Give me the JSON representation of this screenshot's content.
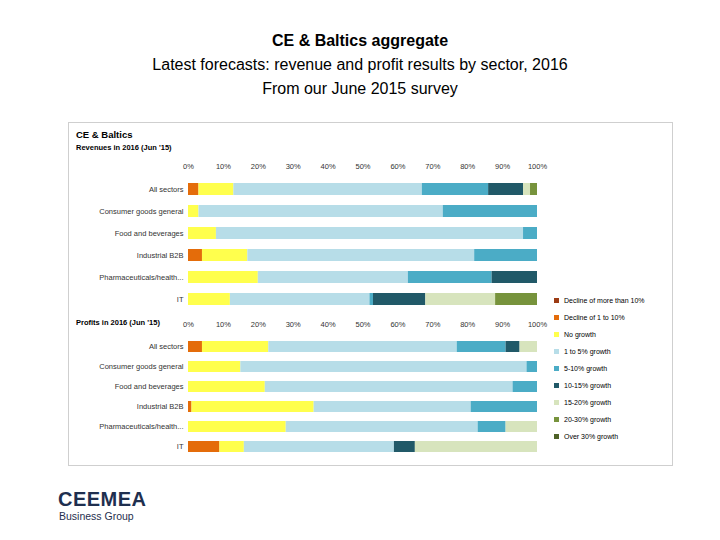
{
  "header": {
    "title": "CE & Baltics aggregate",
    "subtitle": [
      "Latest forecasts: revenue and profit results by sector, 2016",
      "From our June 2015 survey"
    ]
  },
  "panel": {
    "title": "CE & Baltics"
  },
  "chart_data": [
    {
      "type": "bar",
      "title": "Revenues in 2016 (Jun '15)",
      "orientation": "horizontal",
      "stacked": true,
      "legend": "right",
      "categories": [
        "All sectors",
        "Consumer goods general",
        "Food and beverages",
        "Industrial B2B",
        "Pharmaceuticals/health...",
        "IT"
      ],
      "xlim": [
        0,
        100
      ],
      "xticks": [
        {
          "value": 0,
          "label": "0%"
        },
        {
          "value": 10,
          "label": "10%"
        },
        {
          "value": 20,
          "label": "20%"
        },
        {
          "value": 30,
          "label": "30%"
        },
        {
          "value": 40,
          "label": "40%"
        },
        {
          "value": 50,
          "label": "50%"
        },
        {
          "value": 60,
          "label": "60%"
        },
        {
          "value": 70,
          "label": "70%"
        },
        {
          "value": 80,
          "label": "80%"
        },
        {
          "value": 90,
          "label": "90%"
        },
        {
          "value": 100,
          "label": "100%"
        }
      ],
      "series": [
        {
          "name": "Decline of more than 10%",
          "color": "#9c3b14",
          "values": [
            0,
            0,
            0,
            0,
            0,
            0
          ]
        },
        {
          "name": "Decline of 1 to 10%",
          "color": "#e46c0a",
          "values": [
            3,
            0,
            0,
            4,
            0,
            0
          ]
        },
        {
          "name": "No growth",
          "color": "#ffff4d",
          "values": [
            10,
            3,
            8,
            13,
            20,
            12
          ]
        },
        {
          "name": "1 to 5% growth",
          "color": "#b7dde8",
          "values": [
            54,
            70,
            88,
            65,
            43,
            40
          ]
        },
        {
          "name": "5-10% growth",
          "color": "#4bacc6",
          "values": [
            19,
            27,
            4,
            18,
            24,
            1
          ]
        },
        {
          "name": "10-15% growth",
          "color": "#215968",
          "values": [
            10,
            0,
            0,
            0,
            13,
            15
          ]
        },
        {
          "name": "15-20% growth",
          "color": "#d7e4bd",
          "values": [
            2,
            0,
            0,
            0,
            0,
            20
          ]
        },
        {
          "name": "20-30% growth",
          "color": "#77933c",
          "values": [
            2,
            0,
            0,
            0,
            0,
            12
          ]
        },
        {
          "name": "Over 30% growth",
          "color": "#4f6228",
          "values": [
            0,
            0,
            0,
            0,
            0,
            0
          ]
        }
      ]
    },
    {
      "type": "bar",
      "title": "Profits in 2016 (Jun '15)",
      "orientation": "horizontal",
      "stacked": true,
      "categories": [
        "All sectors",
        "Consumer goods general",
        "Food and beverages",
        "Industrial B2B",
        "Pharmaceuticals/health...",
        "IT"
      ],
      "xlim": [
        0,
        100
      ],
      "xticks": [
        {
          "value": 0,
          "label": "0%"
        },
        {
          "value": 10,
          "label": "10%"
        },
        {
          "value": 20,
          "label": "20%"
        },
        {
          "value": 30,
          "label": "30%"
        },
        {
          "value": 40,
          "label": "40%"
        },
        {
          "value": 50,
          "label": "50%"
        },
        {
          "value": 60,
          "label": "60%"
        },
        {
          "value": 70,
          "label": "70%"
        },
        {
          "value": 80,
          "label": "80%"
        },
        {
          "value": 90,
          "label": "90%"
        },
        {
          "value": 100,
          "label": "100%"
        }
      ],
      "series": [
        {
          "name": "Decline of more than 10%",
          "color": "#9c3b14",
          "values": [
            0,
            0,
            0,
            0,
            0,
            0
          ]
        },
        {
          "name": "Decline of 1 to 10%",
          "color": "#e46c0a",
          "values": [
            4,
            0,
            0,
            1,
            0,
            9
          ]
        },
        {
          "name": "No growth",
          "color": "#ffff4d",
          "values": [
            19,
            15,
            22,
            35,
            28,
            7
          ]
        },
        {
          "name": "1 to 5% growth",
          "color": "#b7dde8",
          "values": [
            54,
            82,
            71,
            45,
            55,
            43
          ]
        },
        {
          "name": "5-10% growth",
          "color": "#4bacc6",
          "values": [
            14,
            3,
            7,
            19,
            8,
            0
          ]
        },
        {
          "name": "10-15% growth",
          "color": "#215968",
          "values": [
            4,
            0,
            0,
            0,
            0,
            6
          ]
        },
        {
          "name": "15-20% growth",
          "color": "#d7e4bd",
          "values": [
            5,
            0,
            0,
            0,
            9,
            35
          ]
        },
        {
          "name": "20-30% growth",
          "color": "#77933c",
          "values": [
            0,
            0,
            0,
            0,
            0,
            0
          ]
        },
        {
          "name": "Over 30% growth",
          "color": "#4f6228",
          "values": [
            0,
            0,
            0,
            0,
            0,
            0
          ]
        }
      ]
    }
  ],
  "footer": {
    "logo": [
      "CEEMEA",
      "Business Group"
    ]
  }
}
